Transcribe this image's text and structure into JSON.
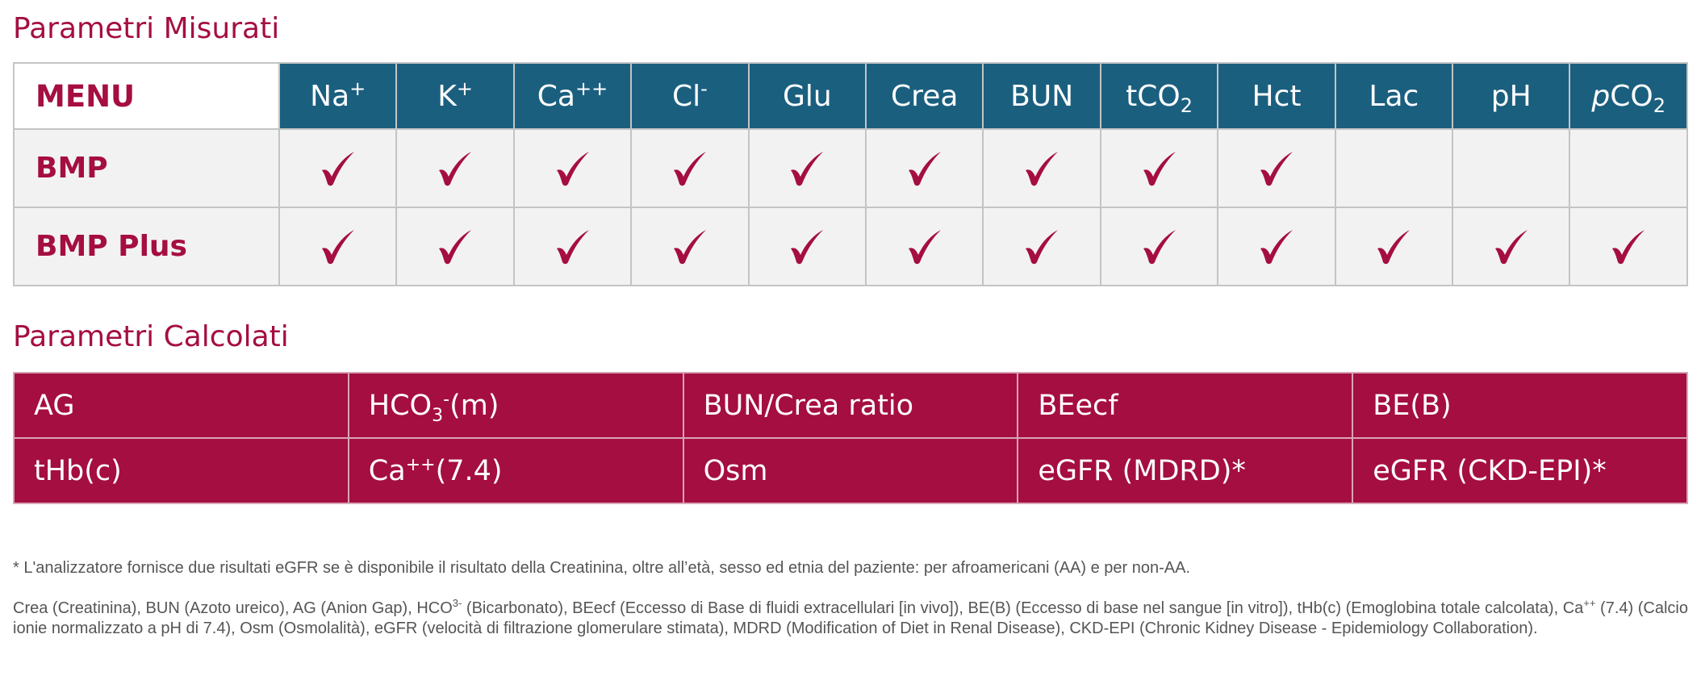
{
  "measured": {
    "title": "Parametri Misurati",
    "menu_label": "MENU",
    "params": [
      {
        "base": "Na",
        "sup": "+",
        "sub": ""
      },
      {
        "base": "K",
        "sup": "+",
        "sub": ""
      },
      {
        "base": "Ca",
        "sup": "++",
        "sub": ""
      },
      {
        "base": "Cl",
        "sup": "-",
        "sub": ""
      },
      {
        "base": "Glu",
        "sup": "",
        "sub": ""
      },
      {
        "base": "Crea",
        "sup": "",
        "sub": ""
      },
      {
        "base": "BUN",
        "sup": "",
        "sub": ""
      },
      {
        "base": "tCO",
        "sup": "",
        "sub": "2"
      },
      {
        "base": "Hct",
        "sup": "",
        "sub": ""
      },
      {
        "base": "Lac",
        "sup": "",
        "sub": ""
      },
      {
        "base": "pH",
        "sup": "",
        "sub": ""
      },
      {
        "base": "pCO",
        "sup": "",
        "sub": "2",
        "italic_prefix": "p"
      }
    ],
    "rows": [
      {
        "label": "BMP",
        "checks": [
          true,
          true,
          true,
          true,
          true,
          true,
          true,
          true,
          true,
          false,
          false,
          false
        ]
      },
      {
        "label": "BMP Plus",
        "checks": [
          true,
          true,
          true,
          true,
          true,
          true,
          true,
          true,
          true,
          true,
          true,
          true
        ]
      }
    ],
    "check_icon": "checkmark-icon",
    "colors": {
      "header_bg": "#1b5f7f",
      "accent": "#a50e40",
      "row_bg": "#f2f2f2"
    }
  },
  "calculated": {
    "title": "Parametri Calcolati",
    "rows": [
      [
        "AG",
        "HCO3-(m)",
        "BUN/Crea ratio",
        "BEecf",
        "BE(B)"
      ],
      [
        "tHb(c)",
        "Ca++(7.4)",
        "Osm",
        "eGFR (MDRD)*",
        "eGFR (CKD-EPI)*"
      ]
    ],
    "rich": {
      "hco3": {
        "base": "HCO",
        "sub": "3",
        "sup": "-",
        "rest": "(m)"
      },
      "ca74": {
        "base": "Ca",
        "sup": "++",
        "rest": "(7.4)"
      }
    },
    "colors": {
      "bg": "#a50e40"
    }
  },
  "footnotes": {
    "note1": "* L'analizzatore fornisce due risultati eGFR se è disponibile il risultato della Creatinina, oltre all’età, sesso ed etnia del paziente: per afroamericani (AA) e per non-AA.",
    "note2_part1": "Crea (Creatinina), BUN (Azoto ureico), AG (Anion Gap), HCO",
    "note2_sup1": "3-",
    "note2_part2": " (Bicarbonato), BEecf (Eccesso di Base di fluidi extracellulari [in vivo]), BE(B) (Eccesso di base nel sangue [in vitro]), tHb(c) (Emoglobina totale calcolata), Ca",
    "note2_sup2": "++",
    "note2_part3": " (7.4) (Calcio ionie normalizzato a pH di 7.4), Osm (Osmolalità), eGFR (velocità di filtrazione glomerulare stimata), MDRD (Modification of Diet in Renal Disease), CKD-EPI (Chronic Kidney Disease - Epidemiology Collaboration)."
  }
}
